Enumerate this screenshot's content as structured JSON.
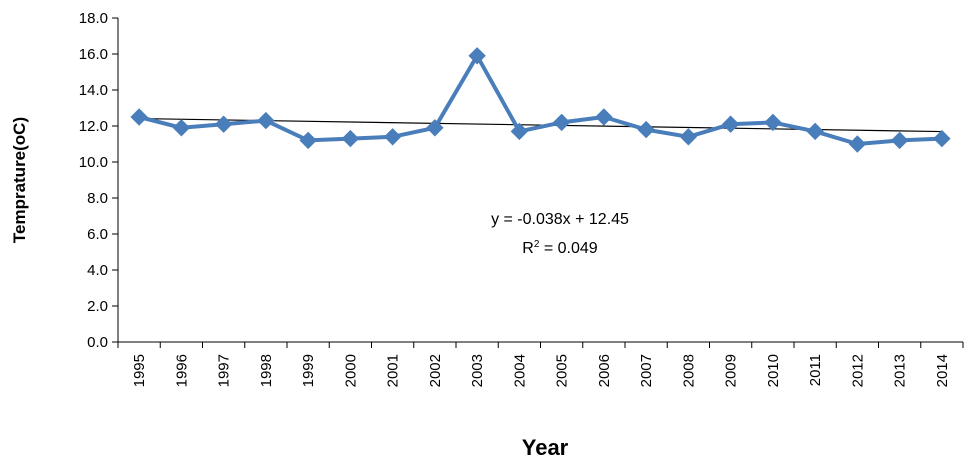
{
  "chart_data": {
    "type": "line",
    "title": "",
    "xlabel": "Year",
    "ylabel": "Temprature(oC)",
    "ylim": [
      0,
      18
    ],
    "yticks": [
      "0.0",
      "2.0",
      "4.0",
      "6.0",
      "8.0",
      "10.0",
      "12.0",
      "14.0",
      "16.0",
      "18.0"
    ],
    "categories": [
      "1995",
      "1996",
      "1997",
      "1998",
      "1999",
      "2000",
      "2001",
      "2002",
      "2003",
      "2004",
      "2005",
      "2006",
      "2007",
      "2008",
      "2009",
      "2010",
      "2011",
      "2012",
      "2013",
      "2014"
    ],
    "series": [
      {
        "values": [
          12.5,
          11.9,
          12.1,
          12.3,
          11.2,
          11.3,
          11.4,
          11.9,
          15.9,
          11.7,
          12.2,
          12.5,
          11.8,
          11.4,
          12.1,
          12.2,
          11.7,
          11.0,
          11.2,
          11.3
        ],
        "color": "#4a7ebb",
        "marker": "diamond"
      }
    ],
    "trendline": {
      "slope": -0.038,
      "intercept": 12.45,
      "color": "#000000"
    },
    "annotations": {
      "equation": "y = -0.038x + 12.45",
      "r2_prefix": "R",
      "r2_sup": "2",
      "r2_suffix": " = 0.049"
    },
    "grid": false,
    "legend": "none"
  }
}
